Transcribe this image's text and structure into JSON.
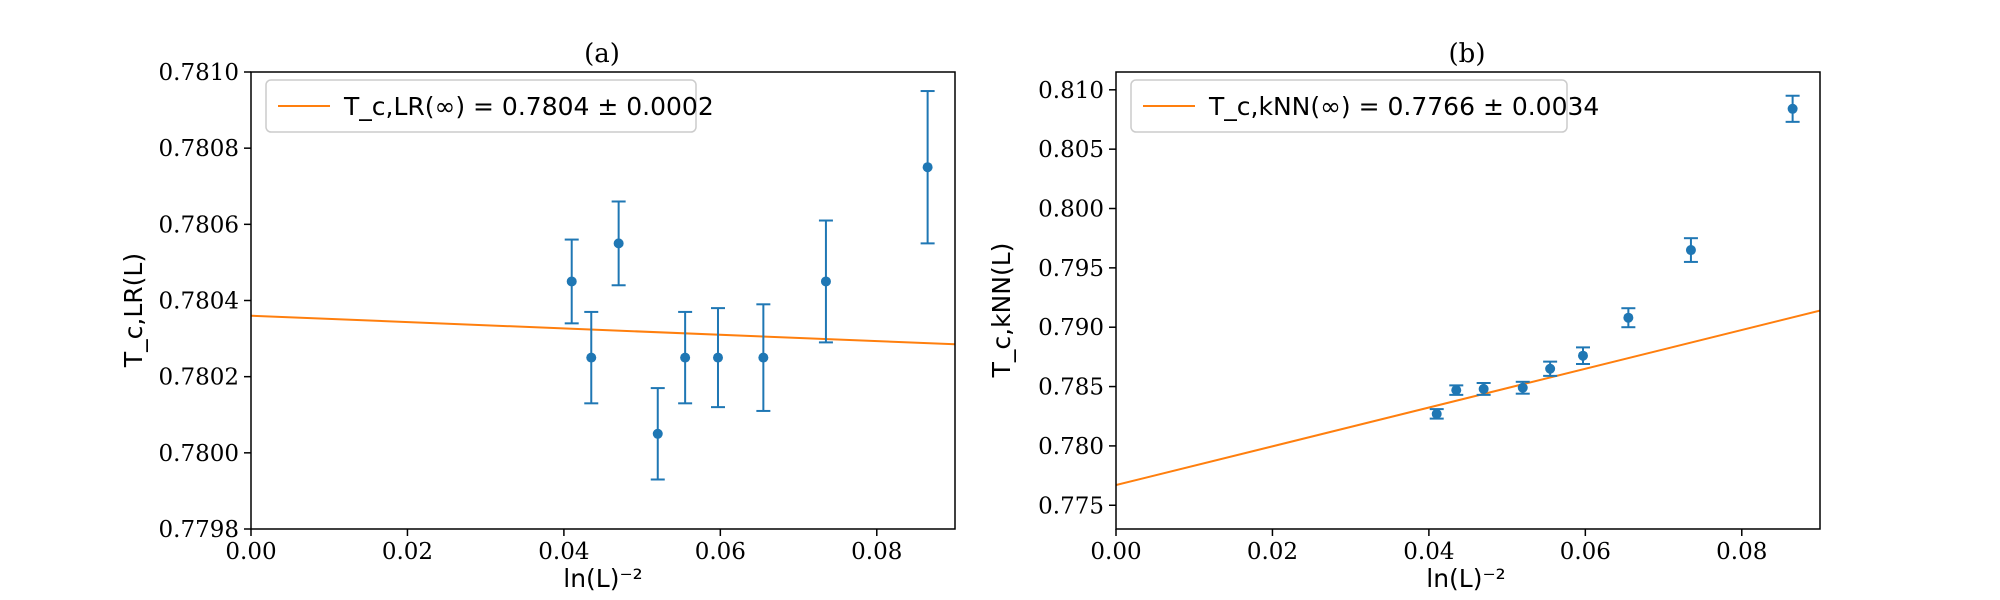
{
  "chart_data": [
    {
      "type": "scatter",
      "title": "(a)",
      "xlabel": "ln(L)⁻²",
      "ylabel": "T_c,LR(L)",
      "xlim": [
        0.0,
        0.09
      ],
      "ylim": [
        0.7798,
        0.781
      ],
      "xticks": [
        0.0,
        0.02,
        0.04,
        0.06,
        0.08
      ],
      "xtick_labels": [
        "0.00",
        "0.02",
        "0.04",
        "0.06",
        "0.08"
      ],
      "yticks": [
        0.7798,
        0.78,
        0.7802,
        0.7804,
        0.7806,
        0.7808,
        0.781
      ],
      "ytick_labels": [
        "0.7798",
        "0.7800",
        "0.7802",
        "0.7804",
        "0.7806",
        "0.7808",
        "0.7810"
      ],
      "grid": false,
      "legend_position": "top-left",
      "legend": "T_c,LR(∞) = 0.7804 ± 0.0002",
      "colors": {
        "points": "#1f77b4",
        "fit": "#ff7f0e"
      },
      "series": [
        {
          "kind": "errorbar",
          "x": [
            0.041,
            0.0435,
            0.047,
            0.052,
            0.0555,
            0.0597,
            0.0655,
            0.0735,
            0.0865
          ],
          "y": [
            0.78045,
            0.78025,
            0.78055,
            0.78005,
            0.78025,
            0.78025,
            0.78025,
            0.78045,
            0.78075
          ],
          "yerr": [
            0.00011,
            0.00012,
            0.00011,
            0.00012,
            0.00012,
            0.00013,
            0.00014,
            0.00016,
            0.0002
          ]
        },
        {
          "kind": "line",
          "x": [
            0.0,
            0.09
          ],
          "y": [
            0.78036,
            0.780285
          ]
        }
      ]
    },
    {
      "type": "scatter",
      "title": "(b)",
      "xlabel": "ln(L)⁻²",
      "ylabel": "T_c,kNN(L)",
      "xlim": [
        0.0,
        0.09
      ],
      "ylim": [
        0.773,
        0.8115
      ],
      "xticks": [
        0.0,
        0.02,
        0.04,
        0.06,
        0.08
      ],
      "xtick_labels": [
        "0.00",
        "0.02",
        "0.04",
        "0.06",
        "0.08"
      ],
      "yticks": [
        0.775,
        0.78,
        0.785,
        0.79,
        0.795,
        0.8,
        0.805,
        0.81
      ],
      "ytick_labels": [
        "0.775",
        "0.780",
        "0.785",
        "0.790",
        "0.795",
        "0.800",
        "0.805",
        "0.810"
      ],
      "grid": false,
      "legend_position": "top-left",
      "legend": "T_c,kNN(∞) = 0.7766 ± 0.0034",
      "colors": {
        "points": "#1f77b4",
        "fit": "#ff7f0e"
      },
      "series": [
        {
          "kind": "errorbar",
          "x": [
            0.041,
            0.0435,
            0.047,
            0.052,
            0.0555,
            0.0597,
            0.0655,
            0.0735,
            0.0865
          ],
          "y": [
            0.7827,
            0.7847,
            0.7848,
            0.7849,
            0.7865,
            0.7876,
            0.7908,
            0.7965,
            0.8084
          ],
          "yerr": [
            0.0004,
            0.0004,
            0.0005,
            0.0005,
            0.0006,
            0.0007,
            0.0008,
            0.001,
            0.0011
          ]
        },
        {
          "kind": "line",
          "x": [
            0.0,
            0.09
          ],
          "y": [
            0.7767,
            0.7914
          ]
        }
      ]
    }
  ]
}
